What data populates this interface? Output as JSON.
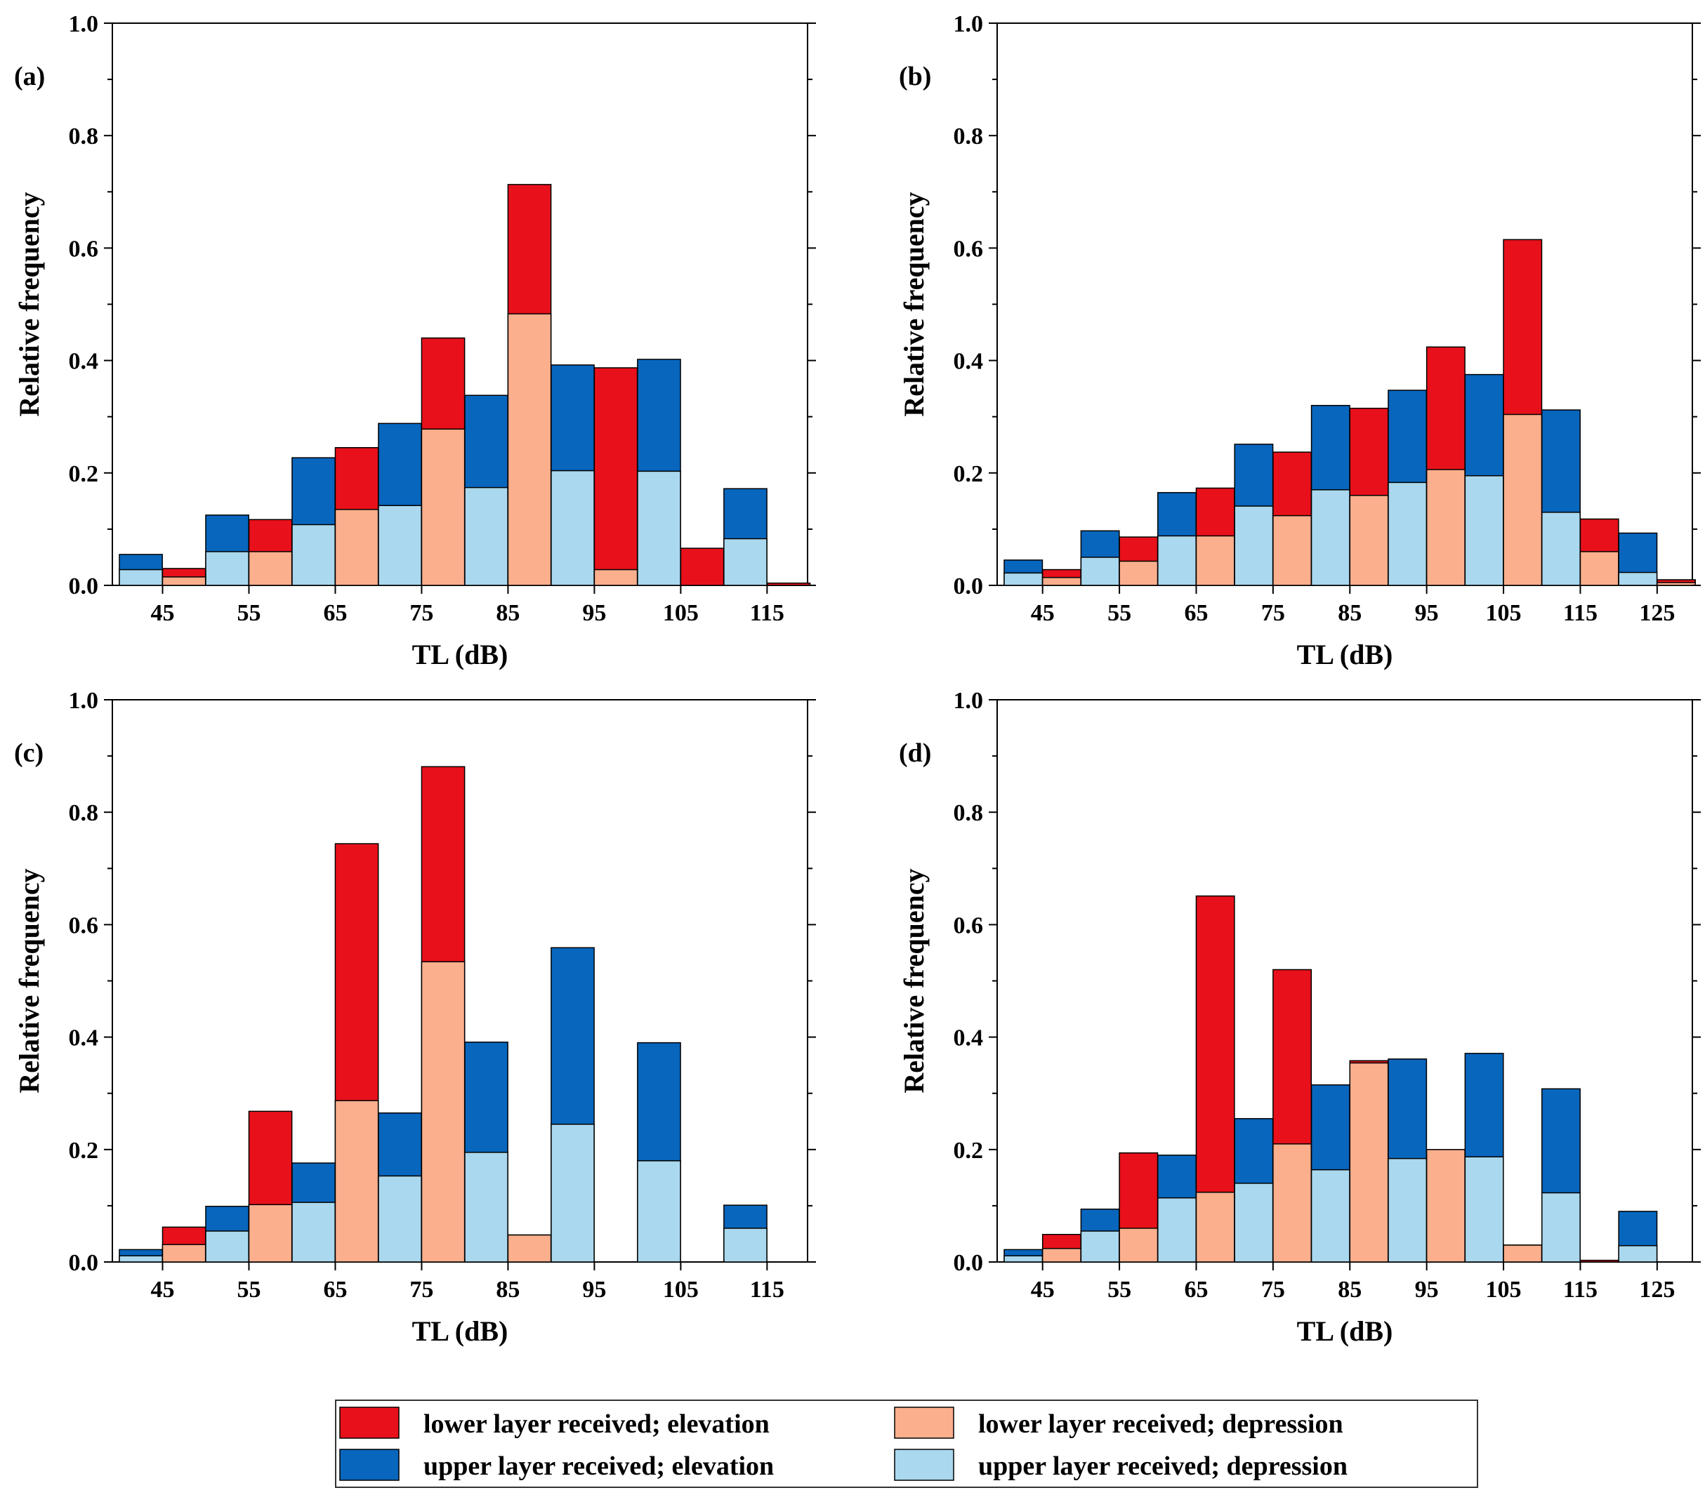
{
  "colors": {
    "lower_elevation": "#e8111b",
    "lower_depression": "#fbaf8d",
    "upper_elevation": "#0866bd",
    "upper_depression": "#aad8ee"
  },
  "legend": [
    {
      "key": "lower_elevation",
      "label": "lower layer received; elevation"
    },
    {
      "key": "lower_depression",
      "label": "lower layer received; depression"
    },
    {
      "key": "upper_elevation",
      "label": "upper layer received; elevation"
    },
    {
      "key": "upper_depression",
      "label": "upper layer received; depression"
    }
  ],
  "chart_data": [
    {
      "type": "bar",
      "panel": "(a)",
      "xlabel": "TL (dB)",
      "ylabel": "Relative frequency",
      "ylim": [
        0,
        1
      ],
      "yticks": [
        "0.0",
        "0.2",
        "0.4",
        "0.6",
        "0.8",
        "1.0"
      ],
      "categories": [
        "45",
        "55",
        "65",
        "75",
        "85",
        "95",
        "105",
        "115"
      ],
      "upper_total": [
        0.055,
        0.125,
        0.227,
        0.288,
        0.338,
        0.392,
        0.402,
        0.172
      ],
      "upper_depression": [
        0.028,
        0.06,
        0.108,
        0.142,
        0.174,
        0.204,
        0.203,
        0.083
      ],
      "lower_total": [
        0.03,
        0.117,
        0.245,
        0.44,
        0.713,
        0.387,
        0.066,
        0.004
      ],
      "lower_depression": [
        0.015,
        0.06,
        0.135,
        0.278,
        0.483,
        0.028,
        0.0,
        0.0
      ]
    },
    {
      "type": "bar",
      "panel": "(b)",
      "xlabel": "TL (dB)",
      "ylabel": "Relative frequency",
      "ylim": [
        0,
        1
      ],
      "yticks": [
        "0.0",
        "0.2",
        "0.4",
        "0.6",
        "0.8",
        "1.0"
      ],
      "categories": [
        "45",
        "55",
        "65",
        "75",
        "85",
        "95",
        "105",
        "115",
        "125"
      ],
      "upper_total": [
        0.045,
        0.097,
        0.165,
        0.251,
        0.32,
        0.347,
        0.375,
        0.312,
        0.093
      ],
      "upper_depression": [
        0.022,
        0.05,
        0.088,
        0.141,
        0.17,
        0.183,
        0.195,
        0.13,
        0.023
      ],
      "lower_total": [
        0.028,
        0.086,
        0.173,
        0.237,
        0.315,
        0.424,
        0.615,
        0.118,
        0.01
      ],
      "lower_depression": [
        0.014,
        0.043,
        0.088,
        0.124,
        0.16,
        0.206,
        0.304,
        0.06,
        0.005
      ]
    },
    {
      "type": "bar",
      "panel": "(c)",
      "xlabel": "TL (dB)",
      "ylabel": "Relative frequency",
      "ylim": [
        0,
        1
      ],
      "yticks": [
        "0.0",
        "0.2",
        "0.4",
        "0.6",
        "0.8",
        "1.0"
      ],
      "categories": [
        "45",
        "55",
        "65",
        "75",
        "85",
        "95",
        "105",
        "115"
      ],
      "upper_total": [
        0.022,
        0.099,
        0.176,
        0.265,
        0.391,
        0.559,
        0.39,
        0.101
      ],
      "upper_depression": [
        0.011,
        0.055,
        0.106,
        0.153,
        0.195,
        0.245,
        0.18,
        0.06
      ],
      "lower_total": [
        0.062,
        0.268,
        0.744,
        0.881,
        0.048,
        0.0,
        0.0,
        0.0
      ],
      "lower_depression": [
        0.031,
        0.102,
        0.287,
        0.534,
        0.048,
        0.0,
        0.0,
        0.0
      ]
    },
    {
      "type": "bar",
      "panel": "(d)",
      "xlabel": "TL (dB)",
      "ylabel": "Relative frequency",
      "ylim": [
        0,
        1
      ],
      "yticks": [
        "0.0",
        "0.2",
        "0.4",
        "0.6",
        "0.8",
        "1.0"
      ],
      "categories": [
        "45",
        "55",
        "65",
        "75",
        "85",
        "95",
        "105",
        "115",
        "125"
      ],
      "upper_total": [
        0.022,
        0.094,
        0.19,
        0.255,
        0.315,
        0.361,
        0.371,
        0.308,
        0.09
      ],
      "upper_depression": [
        0.011,
        0.055,
        0.114,
        0.14,
        0.164,
        0.184,
        0.187,
        0.123,
        0.029
      ],
      "lower_total": [
        0.049,
        0.194,
        0.651,
        0.52,
        0.358,
        0.2,
        0.03,
        0.003,
        0.0
      ],
      "lower_depression": [
        0.024,
        0.06,
        0.124,
        0.21,
        0.354,
        0.2,
        0.03,
        0.0,
        0.0
      ]
    }
  ]
}
